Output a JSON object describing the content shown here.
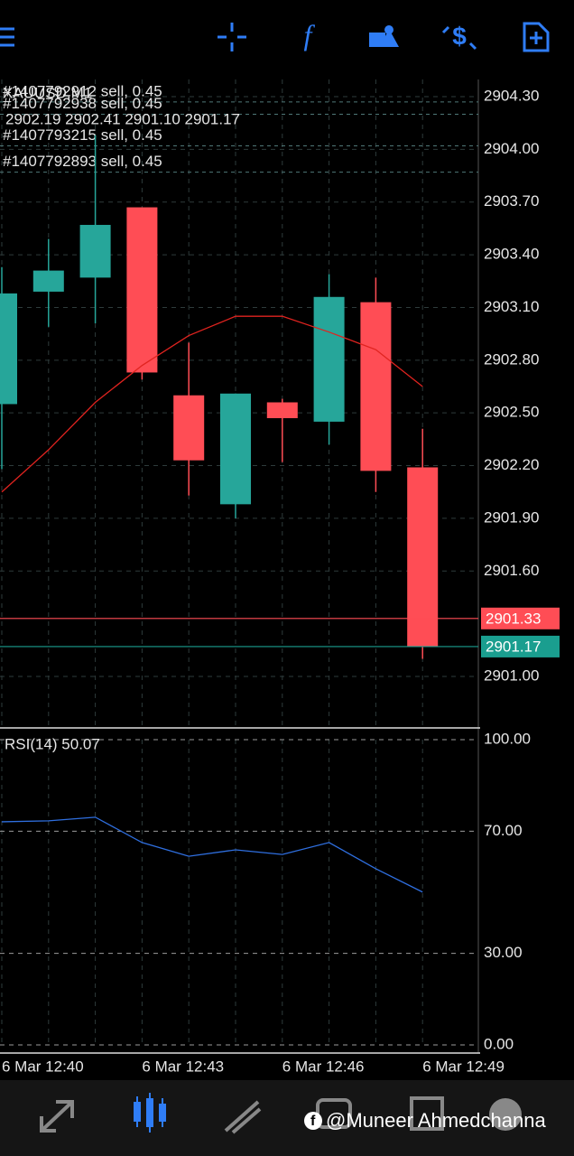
{
  "chart_data": [
    {
      "type": "candlestick",
      "symbol": "XAUUSD,M1",
      "info": "2902.19 2902.41 2901.10 2901.17",
      "categories": [
        "6 Mar 12:40",
        null,
        null,
        "6 Mar 12:43",
        null,
        null,
        "6 Mar 12:46",
        null,
        null,
        "6 Mar 12:49"
      ],
      "open": [
        2902.55,
        2903.19,
        2903.27,
        2903.67,
        2902.6,
        2901.98,
        2902.56,
        2902.45,
        2903.13,
        2902.19
      ],
      "high": [
        2903.33,
        2903.49,
        2904.08,
        2903.67,
        2902.9,
        2902.61,
        2902.58,
        2903.29,
        2903.27,
        2902.41
      ],
      "low": [
        2902.18,
        2902.99,
        2903.01,
        2902.69,
        2902.03,
        2901.9,
        2902.22,
        2902.32,
        2902.05,
        2901.1
      ],
      "close": [
        2903.18,
        2903.31,
        2903.57,
        2902.73,
        2902.23,
        2902.61,
        2902.47,
        2903.16,
        2902.17,
        2901.17
      ],
      "up_color": "#26a69a",
      "down_color": "#ff4d55",
      "ma_values": [
        2902.05,
        2902.29,
        2902.56,
        2902.77,
        2902.94,
        2903.05,
        2903.05,
        2902.96,
        2902.86,
        2902.65
      ],
      "ma_color": "#e0231f",
      "price_lines": [
        {
          "value": 2901.33,
          "color": "#ff4d55"
        },
        {
          "value": 2901.17,
          "color": "#1a9e8f"
        }
      ],
      "orders": [
        {
          "label": "#1407792912 sell, 0.45",
          "value": 2904.27
        },
        {
          "label": "#1407792938 sell, 0.45",
          "value": 2904.2
        },
        {
          "label": "#1407793215 sell, 0.45",
          "value": 2904.02
        },
        {
          "label": "#1407792893 sell, 0.45",
          "value": 2903.87
        }
      ],
      "ylim": [
        2900.71,
        2904.4
      ],
      "yticks": [
        {
          "value": 2904.3,
          "label": "2904.30"
        },
        {
          "value": 2904.0,
          "label": "2904.00"
        },
        {
          "value": 2903.7,
          "label": "2903.70"
        },
        {
          "value": 2903.4,
          "label": "2903.40"
        },
        {
          "value": 2903.1,
          "label": "2903.10"
        },
        {
          "value": 2902.8,
          "label": "2902.80"
        },
        {
          "value": 2902.5,
          "label": "2902.50"
        },
        {
          "value": 2902.2,
          "label": "2902.20"
        },
        {
          "value": 2901.9,
          "label": "2901.90"
        },
        {
          "value": 2901.6,
          "label": "2901.60"
        },
        {
          "value": 2901.0,
          "label": "2901.00"
        }
      ],
      "grid": true
    },
    {
      "type": "line",
      "title": "RSI(14) 50.07",
      "values": [
        73.1,
        73.4,
        74.6,
        66.3,
        61.8,
        63.9,
        62.4,
        66.3,
        57.7,
        50.07
      ],
      "color": "#2f6fe0",
      "ylim": [
        0,
        100
      ],
      "yticks": [
        {
          "value": 100,
          "label": "100.00"
        },
        {
          "value": 70,
          "label": "70.00"
        },
        {
          "value": 30,
          "label": "30.00"
        },
        {
          "value": 0,
          "label": "0.00"
        }
      ],
      "grid": true
    }
  ],
  "watermark": "@Muneer Ahmedchanna"
}
